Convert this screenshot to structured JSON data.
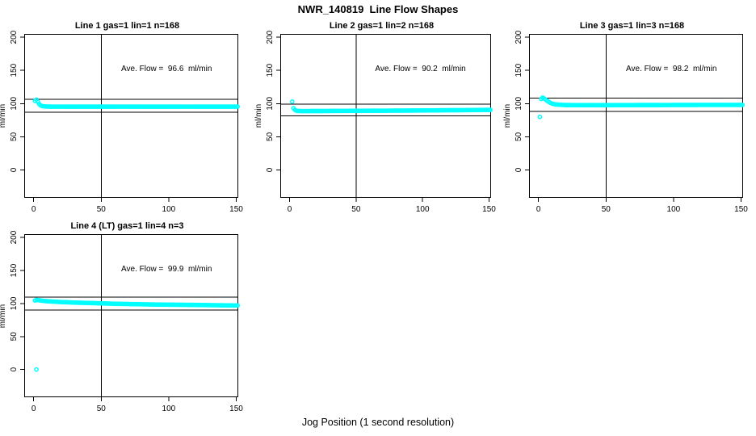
{
  "main_title": "NWR_140819  Line Flow Shapes",
  "outer_xlabel": "Jog Position (1 second resolution)",
  "marker_color": "#00FFFF",
  "line_color": "#000000",
  "background_color": "#FFFFFF",
  "chart_data": [
    {
      "type": "scatter",
      "title": "Line 1 gas=1 lin=1 n=168",
      "gas": 1,
      "lin": 1,
      "n": 168,
      "annotation": "Ave. Flow =  96.6  ml/min",
      "ave_flow_ml_min": 96.6,
      "ylabel": "ml/min",
      "x_ticks": [
        0,
        50,
        100,
        150
      ],
      "y_ticks": [
        0,
        50,
        100,
        150,
        200
      ],
      "xlim": [
        -7,
        151.5
      ],
      "ylim": [
        -42,
        205
      ],
      "grid": false,
      "vline_x": 50,
      "hlines": [
        106.3,
        86.9
      ],
      "x_step": 1,
      "points": [
        [
          1,
          104
        ],
        [
          2,
          106
        ],
        [
          3,
          103
        ],
        [
          4,
          99.5
        ],
        [
          5,
          97.5
        ],
        [
          6,
          96.5
        ],
        [
          7,
          96
        ],
        [
          8,
          95.8
        ],
        [
          10,
          95.5
        ],
        [
          15,
          95.4
        ],
        [
          20,
          95.4
        ],
        [
          30,
          95.4
        ],
        [
          40,
          95.4
        ],
        [
          50,
          95.4
        ],
        [
          60,
          95.4
        ],
        [
          70,
          95.4
        ],
        [
          80,
          95.4
        ],
        [
          90,
          95.4
        ],
        [
          100,
          95.4
        ],
        [
          110,
          95.4
        ],
        [
          120,
          95.4
        ],
        [
          130,
          95.4
        ],
        [
          140,
          95.4
        ],
        [
          150,
          95.4
        ],
        [
          151,
          95.4
        ]
      ],
      "outliers": []
    },
    {
      "type": "scatter",
      "title": "Line 2 gas=1 lin=2 n=168",
      "gas": 1,
      "lin": 2,
      "n": 168,
      "annotation": "Ave. Flow =  90.2  ml/min",
      "ave_flow_ml_min": 90.2,
      "ylabel": "ml/min",
      "x_ticks": [
        0,
        50,
        100,
        150
      ],
      "y_ticks": [
        0,
        50,
        100,
        150,
        200
      ],
      "xlim": [
        -7,
        151.5
      ],
      "ylim": [
        -42,
        205
      ],
      "grid": false,
      "vline_x": 50,
      "hlines": [
        99.2,
        81.2
      ],
      "x_step": 1,
      "points": [
        [
          2,
          103
        ],
        [
          3,
          93
        ],
        [
          4,
          90.5
        ],
        [
          5,
          89.5
        ],
        [
          6,
          89
        ],
        [
          8,
          88.8
        ],
        [
          10,
          88.7
        ],
        [
          20,
          88.8
        ],
        [
          30,
          88.9
        ],
        [
          40,
          89
        ],
        [
          50,
          89.1
        ],
        [
          60,
          89.2
        ],
        [
          70,
          89.3
        ],
        [
          80,
          89.4
        ],
        [
          90,
          89.5
        ],
        [
          100,
          89.7
        ],
        [
          110,
          89.8
        ],
        [
          120,
          90
        ],
        [
          130,
          90.1
        ],
        [
          140,
          90.3
        ],
        [
          150,
          90.5
        ],
        [
          151,
          90.5
        ]
      ],
      "outliers": []
    },
    {
      "type": "scatter",
      "title": "Line 3 gas=1 lin=3 n=168",
      "gas": 1,
      "lin": 3,
      "n": 168,
      "annotation": "Ave. Flow =  98.2  ml/min",
      "ave_flow_ml_min": 98.2,
      "ylabel": "ml/min",
      "x_ticks": [
        0,
        50,
        100,
        150
      ],
      "y_ticks": [
        0,
        50,
        100,
        150,
        200
      ],
      "xlim": [
        -7,
        151.5
      ],
      "ylim": [
        -42,
        205
      ],
      "grid": false,
      "vline_x": 50,
      "hlines": [
        108.0,
        88.4
      ],
      "x_step": 1,
      "points": [
        [
          2,
          107
        ],
        [
          3,
          109
        ],
        [
          4,
          108
        ],
        [
          5,
          106.5
        ],
        [
          6,
          105
        ],
        [
          7,
          103.5
        ],
        [
          8,
          102
        ],
        [
          9,
          101
        ],
        [
          10,
          100
        ],
        [
          12,
          99
        ],
        [
          15,
          98.3
        ],
        [
          20,
          97.8
        ],
        [
          30,
          97.6
        ],
        [
          40,
          97.6
        ],
        [
          50,
          97.6
        ],
        [
          60,
          97.7
        ],
        [
          70,
          97.7
        ],
        [
          80,
          97.8
        ],
        [
          90,
          97.8
        ],
        [
          100,
          97.9
        ],
        [
          110,
          97.9
        ],
        [
          120,
          98
        ],
        [
          130,
          98
        ],
        [
          140,
          98
        ],
        [
          150,
          98
        ],
        [
          151,
          98
        ]
      ],
      "outliers": [
        [
          1,
          80
        ]
      ]
    },
    {
      "type": "scatter",
      "title": "Line 4 (LT) gas=1 lin=4 n=3",
      "gas": 1,
      "lin": 4,
      "n": 3,
      "annotation": "Ave. Flow =  99.9  ml/min",
      "ave_flow_ml_min": 99.9,
      "ylabel": "ml/min",
      "x_ticks": [
        0,
        50,
        100,
        150
      ],
      "y_ticks": [
        0,
        50,
        100,
        150,
        200
      ],
      "xlim": [
        -7,
        151.5
      ],
      "ylim": [
        -42,
        205
      ],
      "grid": false,
      "vline_x": 50,
      "hlines": [
        109.9,
        89.9
      ],
      "x_step": 1,
      "points": [
        [
          1,
          104.5
        ],
        [
          2,
          105.5
        ],
        [
          3,
          105.2
        ],
        [
          4,
          105
        ],
        [
          5,
          104.5
        ],
        [
          8,
          103.8
        ],
        [
          10,
          103.4
        ],
        [
          15,
          102.8
        ],
        [
          20,
          102.2
        ],
        [
          25,
          101.8
        ],
        [
          30,
          101.4
        ],
        [
          40,
          100.8
        ],
        [
          50,
          100.2
        ],
        [
          60,
          99.6
        ],
        [
          70,
          99.2
        ],
        [
          80,
          98.8
        ],
        [
          90,
          98.4
        ],
        [
          100,
          98.2
        ],
        [
          110,
          98
        ],
        [
          120,
          97.8
        ],
        [
          130,
          97.5
        ],
        [
          140,
          97.2
        ],
        [
          150,
          97
        ],
        [
          151,
          97
        ]
      ],
      "outliers": [
        [
          2,
          0
        ]
      ]
    }
  ]
}
